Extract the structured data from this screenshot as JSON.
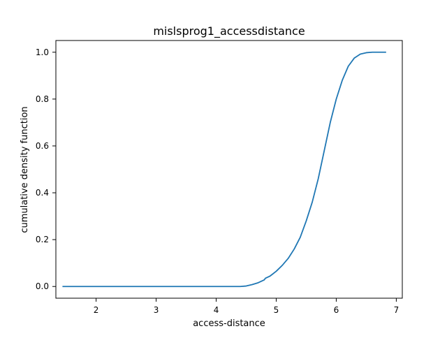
{
  "chart_data": {
    "type": "line",
    "title": "mislsprog1_accessdistance",
    "xlabel": "access-distance",
    "ylabel": "cumulative density function",
    "xlim": [
      1.33,
      7.1
    ],
    "ylim": [
      -0.05,
      1.05
    ],
    "xticks": [
      2,
      3,
      4,
      5,
      6,
      7
    ],
    "yticks": [
      0.0,
      0.2,
      0.4,
      0.6,
      0.8,
      1.0
    ],
    "xtick_labels": [
      "2",
      "3",
      "4",
      "5",
      "6",
      "7"
    ],
    "ytick_labels": [
      "0.0",
      "0.2",
      "0.4",
      "0.6",
      "0.8",
      "1.0"
    ],
    "grid": false,
    "series": [
      {
        "color": "#1f77b4",
        "points": [
          [
            1.45,
            0.0
          ],
          [
            2.0,
            0.0
          ],
          [
            3.0,
            0.0
          ],
          [
            4.0,
            0.0
          ],
          [
            4.4,
            0.0
          ],
          [
            4.5,
            0.002
          ],
          [
            4.6,
            0.008
          ],
          [
            4.7,
            0.016
          ],
          [
            4.8,
            0.028
          ],
          [
            4.82,
            0.035
          ],
          [
            4.9,
            0.045
          ],
          [
            5.0,
            0.065
          ],
          [
            5.1,
            0.09
          ],
          [
            5.2,
            0.12
          ],
          [
            5.3,
            0.16
          ],
          [
            5.4,
            0.21
          ],
          [
            5.5,
            0.28
          ],
          [
            5.6,
            0.36
          ],
          [
            5.7,
            0.46
          ],
          [
            5.8,
            0.58
          ],
          [
            5.9,
            0.7
          ],
          [
            6.0,
            0.8
          ],
          [
            6.1,
            0.88
          ],
          [
            6.2,
            0.94
          ],
          [
            6.3,
            0.975
          ],
          [
            6.4,
            0.992
          ],
          [
            6.5,
            0.998
          ],
          [
            6.6,
            1.0
          ],
          [
            6.82,
            1.0
          ]
        ]
      }
    ]
  }
}
